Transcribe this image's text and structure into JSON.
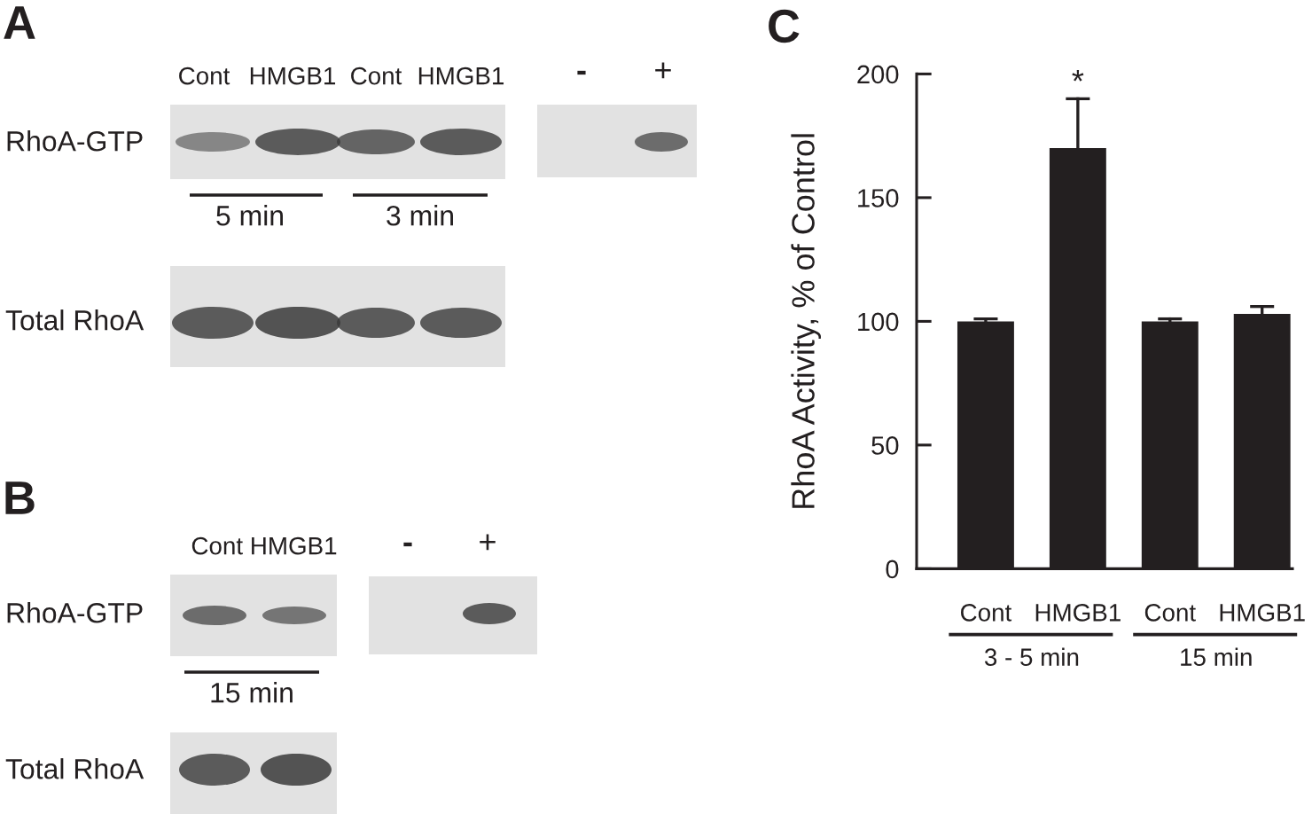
{
  "chart_data": [
    {
      "type": "other",
      "title": "A",
      "annotations": [
        "Cont",
        "HMGB1",
        "Cont",
        "HMGB1",
        "-",
        "+",
        "RhoA-GTP",
        "5 min",
        "3 min",
        "Total RhoA"
      ]
    },
    {
      "type": "other",
      "title": "B",
      "annotations": [
        "Cont HMGB1",
        "-",
        "+",
        "RhoA-GTP",
        "15 min",
        "Total RhoA"
      ]
    },
    {
      "type": "bar",
      "title": "C",
      "ylabel": "RhoA Activity, % of Control",
      "categories": [
        "Cont",
        "HMGB1",
        "Cont",
        "HMGB1"
      ],
      "values": [
        100,
        170,
        100,
        103
      ],
      "color": "#231f20",
      "errors": [
        [
          100,
          101
        ],
        [
          170,
          190
        ],
        [
          100,
          101
        ],
        [
          103,
          106
        ]
      ],
      "ylim": [
        0,
        200
      ],
      "yticks": [
        0,
        50,
        100,
        150,
        200
      ],
      "annotations": [
        {
          "text": "*",
          "x": "HMGB1",
          "y": 190
        },
        "3 - 5 min",
        "15 min"
      ]
    }
  ]
}
